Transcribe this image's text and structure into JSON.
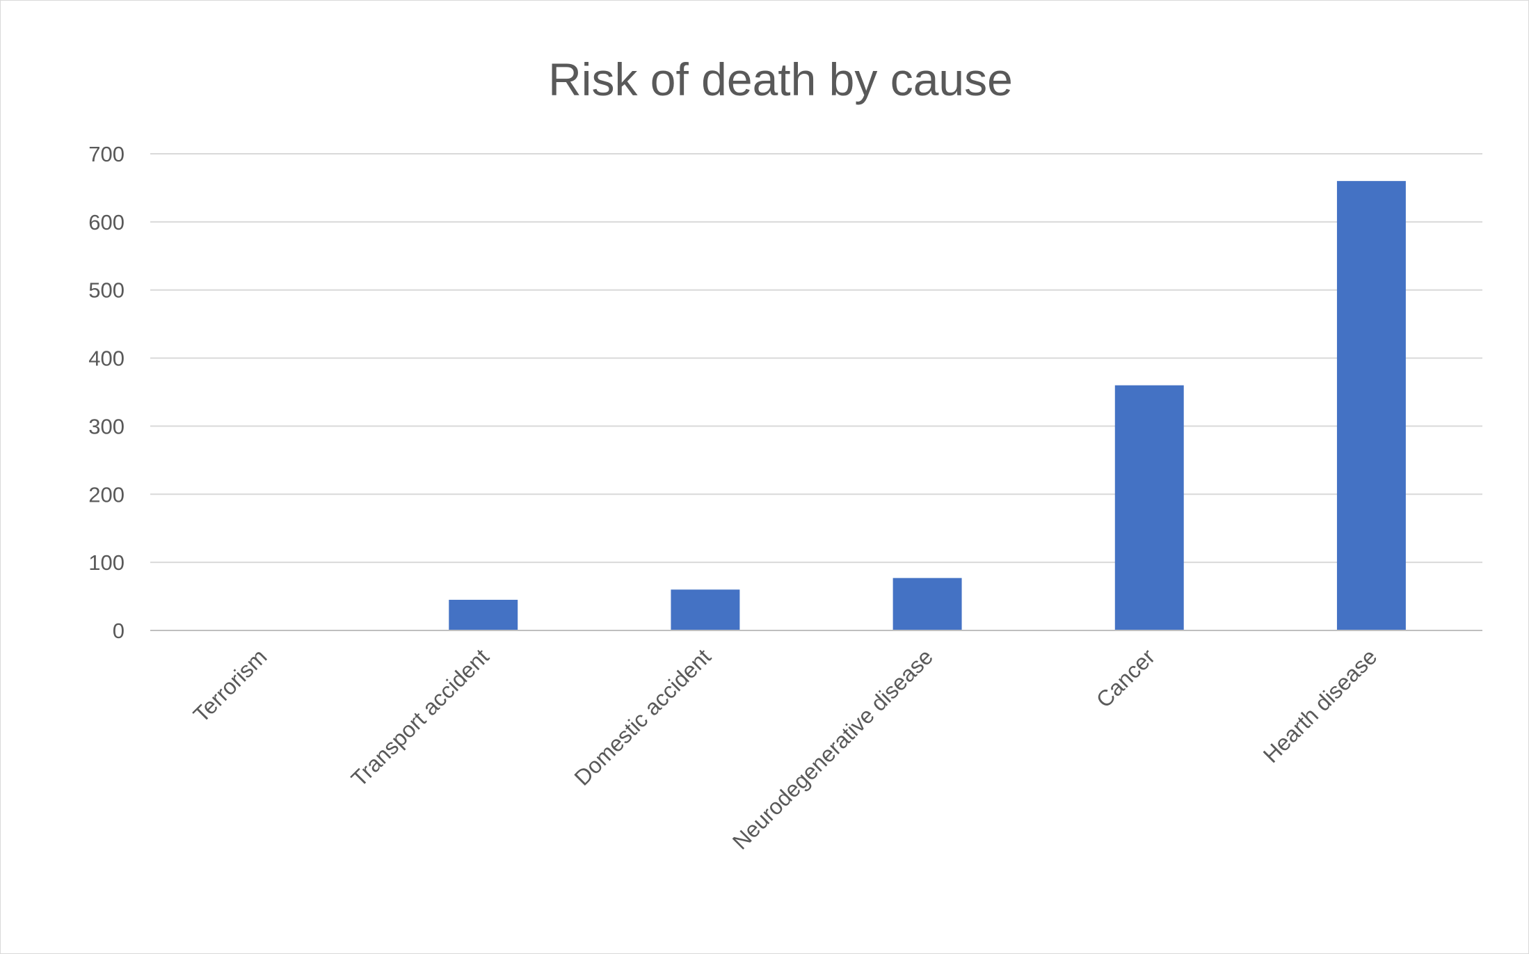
{
  "chart_data": {
    "type": "bar",
    "title": "Risk of death by cause",
    "xlabel": "",
    "ylabel": "",
    "categories": [
      "Terrorism",
      "Transport accident",
      "Domestic accident",
      "Neurodegenerative disease",
      "Cancer",
      "Hearth disease"
    ],
    "values": [
      0,
      45,
      60,
      77,
      360,
      660
    ],
    "ylim": [
      0,
      700
    ],
    "yticks": [
      0,
      100,
      200,
      300,
      400,
      500,
      600,
      700
    ],
    "grid": true,
    "legend": "none",
    "bar_color": "#4472C4"
  }
}
